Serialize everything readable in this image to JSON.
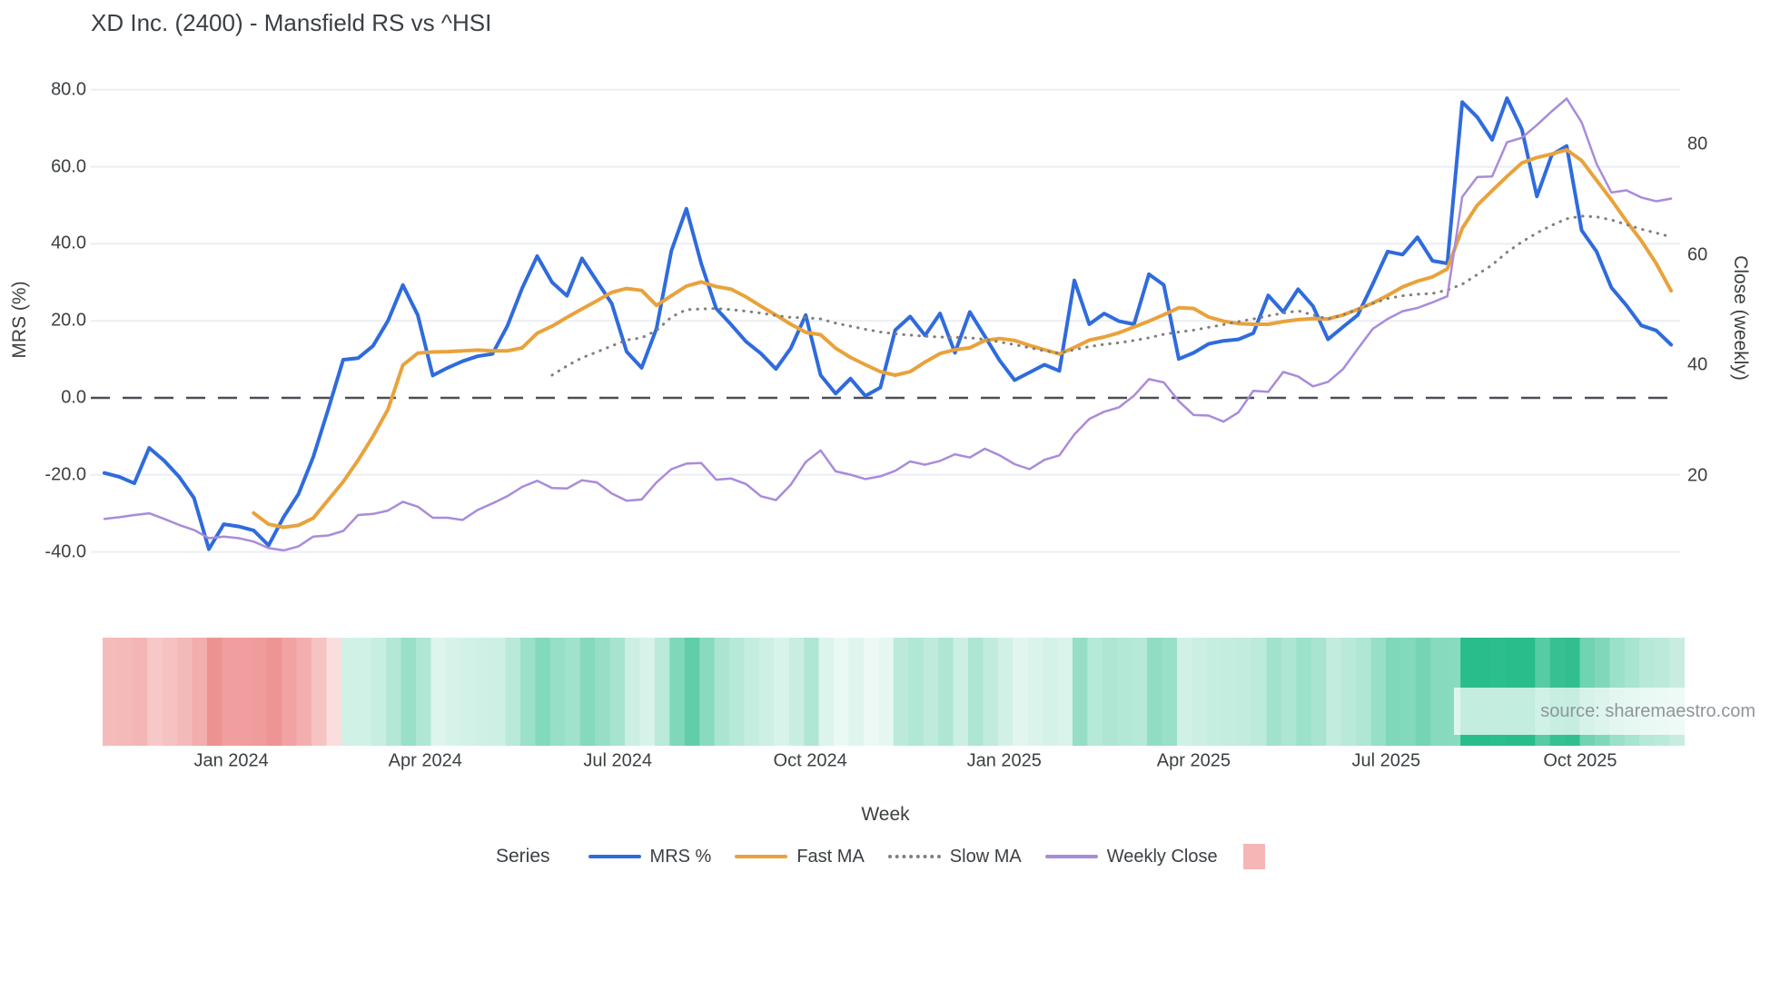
{
  "title": "XD Inc. (2400) - Mansfield RS vs ^HSI",
  "source": "source: sharemaestro.com",
  "axes": {
    "left_title": "MRS (%)",
    "right_title": "Close (weekly)",
    "x_title": "Week"
  },
  "legend": {
    "title": "Series",
    "items": [
      {
        "label": "MRS %",
        "swatch": "line",
        "color": "#2f6bdd"
      },
      {
        "label": "Fast MA",
        "swatch": "line",
        "color": "#e9a23b"
      },
      {
        "label": "Slow MA",
        "swatch": "dotted",
        "color": "#7f7f7f"
      },
      {
        "label": "Weekly Close",
        "swatch": "line",
        "color": "#a98bdb"
      },
      {
        "label": "",
        "swatch": "square",
        "color": "#f7b6b6"
      }
    ]
  },
  "colors": {
    "mrs_line": "#2f6bdd",
    "fast_ma_line": "#e9a23b",
    "slow_ma_line": "#7f7f7f",
    "weekly_close_line": "#a98bdb",
    "zero_line": "#4d4d55",
    "gridline": "#eaeef4",
    "band_positive": "#29bd8b",
    "band_negative": "#ee9090",
    "legend_band_swatch": "#f7b6b6",
    "text": "#3c4043",
    "source_text": "#8f959b"
  },
  "chart_data": {
    "type": "line",
    "title": "XD Inc. (2400) - Mansfield RS vs ^HSI",
    "xlabel": "Week",
    "x_axis": {
      "tick_labels": [
        "Jan 2024",
        "Apr 2024",
        "Jul 2024",
        "Oct 2024",
        "Jan 2025",
        "Apr 2025",
        "Jul 2025",
        "Oct 2025"
      ],
      "tick_week_index": [
        8.5,
        21.5,
        34.4,
        47.3,
        60.3,
        73.0,
        85.9,
        98.9
      ],
      "n_weeks": 106
    },
    "left_axis": {
      "title": "MRS (%)",
      "ticks": [
        80,
        60,
        40,
        20,
        0,
        -20,
        -40
      ],
      "tick_labels": [
        "80.0",
        "60.0",
        "40.0",
        "20.0",
        "0.0",
        "-20.0",
        "-40.0"
      ],
      "range": [
        -45.3,
        80.2
      ],
      "zero_line_dashed": true
    },
    "right_axis": {
      "title": "Close (weekly)",
      "ticks": [
        80,
        60,
        40,
        20
      ],
      "tick_labels": [
        "80",
        "60",
        "40",
        "20"
      ],
      "range": [
        2.5,
        90.0
      ]
    },
    "grid": "horizontal-only",
    "legend_position": "bottom",
    "series": [
      {
        "name": "MRS %",
        "axis": "left",
        "style": "solid",
        "color": "#2f6bdd",
        "width": 4,
        "values": [
          -19.5,
          -20.5,
          -22.2,
          -13.0,
          -16.3,
          -20.5,
          -26.0,
          -39.3,
          -32.8,
          -33.4,
          -34.4,
          -38.3,
          -31.0,
          -25.0,
          -15.3,
          -3.0,
          9.9,
          10.3,
          13.5,
          20.0,
          29.3,
          21.5,
          5.8,
          7.8,
          9.5,
          10.8,
          11.4,
          18.6,
          28.5,
          36.8,
          30.0,
          26.5,
          36.2,
          30.3,
          24.5,
          12.0,
          7.8,
          18.0,
          38.2,
          49.1,
          34.8,
          23.2,
          19.0,
          14.6,
          11.5,
          7.5,
          12.9,
          21.5,
          5.9,
          1.1,
          5.0,
          0.5,
          2.7,
          17.6,
          21.1,
          16.2,
          21.9,
          11.7,
          22.3,
          16.0,
          9.7,
          4.6,
          6.6,
          8.6,
          7.0,
          30.5,
          19.1,
          21.9,
          19.9,
          19.1,
          32.1,
          29.3,
          10.1,
          11.7,
          14.0,
          14.8,
          15.2,
          16.8,
          26.6,
          22.3,
          28.2,
          23.8,
          15.2,
          18.4,
          21.5,
          29.5,
          38.0,
          37.2,
          41.7,
          35.6,
          34.9,
          76.8,
          72.9,
          67.0,
          77.8,
          69.7,
          52.3,
          63.1,
          65.4,
          43.5,
          38.0,
          28.6,
          24.0,
          18.8,
          17.5,
          13.8
        ]
      },
      {
        "name": "Fast MA",
        "axis": "left",
        "style": "solid",
        "color": "#e9a23b",
        "width": 4,
        "values": [
          null,
          null,
          null,
          null,
          null,
          null,
          null,
          null,
          null,
          null,
          -29.9,
          -32.8,
          -33.6,
          -33.1,
          -31.2,
          -26.5,
          -21.8,
          -16.2,
          -10.0,
          -3.0,
          8.5,
          11.6,
          11.9,
          12.0,
          12.2,
          12.4,
          12.2,
          12.2,
          13.0,
          16.8,
          18.6,
          20.9,
          23.1,
          25.2,
          27.4,
          28.4,
          27.9,
          24.0,
          26.5,
          29.0,
          30.1,
          28.9,
          28.2,
          26.2,
          23.8,
          21.5,
          19.1,
          17.0,
          16.4,
          12.9,
          10.5,
          8.6,
          6.8,
          5.9,
          6.8,
          9.3,
          11.5,
          12.5,
          13.0,
          14.9,
          15.4,
          14.9,
          13.6,
          12.5,
          11.4,
          13.1,
          15.0,
          15.8,
          16.9,
          18.4,
          19.9,
          21.6,
          23.4,
          23.2,
          21.0,
          19.9,
          19.3,
          19.1,
          19.1,
          19.8,
          20.3,
          20.6,
          20.5,
          21.5,
          23.0,
          24.6,
          26.6,
          28.8,
          30.3,
          31.4,
          33.5,
          44.0,
          50.0,
          53.8,
          57.5,
          61.0,
          62.4,
          63.3,
          64.4,
          61.6,
          56.5,
          51.4,
          45.9,
          40.8,
          34.9,
          27.8
        ]
      },
      {
        "name": "Slow MA",
        "axis": "left",
        "style": "dotted",
        "color": "#7f7f7f",
        "width": 3,
        "values": [
          null,
          null,
          null,
          null,
          null,
          null,
          null,
          null,
          null,
          null,
          null,
          null,
          null,
          null,
          null,
          null,
          null,
          null,
          null,
          null,
          null,
          null,
          null,
          null,
          null,
          null,
          null,
          null,
          null,
          null,
          5.9,
          8.3,
          10.4,
          11.9,
          13.5,
          15.0,
          15.6,
          17.5,
          21.0,
          22.9,
          23.1,
          23.2,
          22.9,
          22.5,
          22.0,
          21.4,
          20.9,
          20.8,
          20.5,
          19.4,
          18.6,
          17.8,
          17.1,
          16.6,
          16.3,
          16.0,
          15.8,
          15.7,
          15.6,
          15.2,
          14.5,
          13.8,
          13.0,
          12.2,
          11.6,
          12.5,
          13.3,
          13.9,
          14.3,
          14.9,
          15.6,
          16.5,
          17.1,
          17.6,
          18.3,
          19.0,
          19.8,
          20.5,
          21.3,
          22.0,
          22.6,
          21.5,
          20.5,
          21.5,
          23.0,
          24.5,
          25.8,
          26.5,
          26.9,
          27.1,
          28.0,
          29.5,
          32.0,
          34.5,
          37.8,
          40.5,
          42.8,
          44.8,
          46.5,
          47.2,
          47.0,
          46.2,
          45.0,
          43.8,
          42.8,
          41.8
        ]
      },
      {
        "name": "Weekly Close",
        "axis": "right",
        "style": "solid",
        "color": "#a98bdb",
        "width": 2.5,
        "values": [
          12.2,
          12.5,
          12.9,
          13.2,
          12.2,
          11.1,
          10.2,
          8.7,
          9.0,
          8.7,
          8.1,
          6.9,
          6.5,
          7.2,
          9.0,
          9.2,
          10.0,
          12.9,
          13.1,
          13.7,
          15.3,
          14.4,
          12.4,
          12.4,
          12.0,
          13.8,
          15.0,
          16.3,
          18.0,
          19.1,
          17.8,
          17.7,
          19.2,
          18.8,
          16.8,
          15.5,
          15.7,
          18.8,
          21.2,
          22.2,
          22.3,
          19.3,
          19.5,
          18.5,
          16.3,
          15.6,
          18.4,
          22.5,
          24.6,
          20.8,
          20.2,
          19.4,
          19.9,
          20.9,
          22.6,
          22.0,
          22.7,
          23.9,
          23.3,
          24.9,
          23.7,
          22.1,
          21.2,
          22.9,
          23.7,
          27.5,
          30.3,
          31.6,
          32.4,
          34.5,
          37.5,
          36.9,
          33.5,
          31.0,
          30.9,
          29.8,
          31.5,
          35.4,
          35.2,
          38.8,
          38.0,
          36.2,
          37.0,
          39.3,
          43.0,
          46.6,
          48.4,
          49.8,
          50.4,
          51.4,
          52.5,
          70.5,
          74.1,
          74.2,
          80.4,
          81.2,
          83.5,
          86.0,
          88.3,
          84.0,
          76.5,
          71.3,
          71.7,
          70.4,
          69.7,
          70.2
        ]
      }
    ],
    "strength_band": {
      "description": "heat strip below x-axis colored by MRS % value (red negative, green positive)",
      "derived_from": "MRS %"
    }
  }
}
